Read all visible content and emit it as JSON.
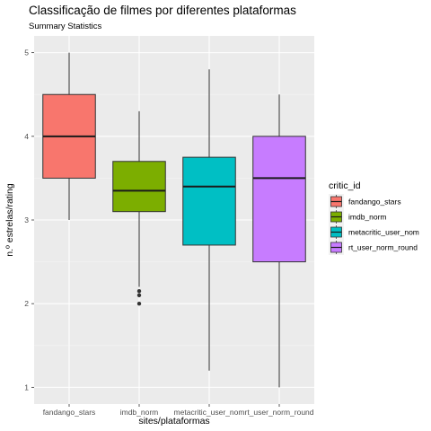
{
  "chart_data": {
    "type": "boxplot",
    "title": "Classificação de filmes por diferentes plataformas",
    "subtitle": "Summary Statistics",
    "xlabel": "sites/plataformas",
    "ylabel": "n.º estrelas/rating",
    "ylim": [
      0.8,
      5.2
    ],
    "yticks": [
      1,
      2,
      3,
      4,
      5
    ],
    "grid": true,
    "legend": {
      "title": "critic_id",
      "placement": "right"
    },
    "categories": [
      "fandango_stars",
      "imdb_norm",
      "metacritic_user_nom",
      "rt_user_norm_round"
    ],
    "series": [
      {
        "name": "fandango_stars",
        "color": "#F8766D",
        "whisker_low": 3.0,
        "q1": 3.5,
        "median": 4.0,
        "q3": 4.5,
        "whisker_high": 5.0,
        "outliers": []
      },
      {
        "name": "imdb_norm",
        "color": "#7CAE00",
        "whisker_low": 2.2,
        "q1": 3.1,
        "median": 3.35,
        "q3": 3.7,
        "whisker_high": 4.3,
        "outliers": [
          2.0,
          2.1,
          2.15
        ]
      },
      {
        "name": "metacritic_user_nom",
        "color": "#00BFC4",
        "whisker_low": 1.2,
        "q1": 2.7,
        "median": 3.4,
        "q3": 3.75,
        "whisker_high": 4.8,
        "outliers": []
      },
      {
        "name": "rt_user_norm_round",
        "color": "#C77CFF",
        "whisker_low": 1.0,
        "q1": 2.5,
        "median": 3.5,
        "q3": 4.0,
        "whisker_high": 4.5,
        "outliers": []
      }
    ]
  }
}
